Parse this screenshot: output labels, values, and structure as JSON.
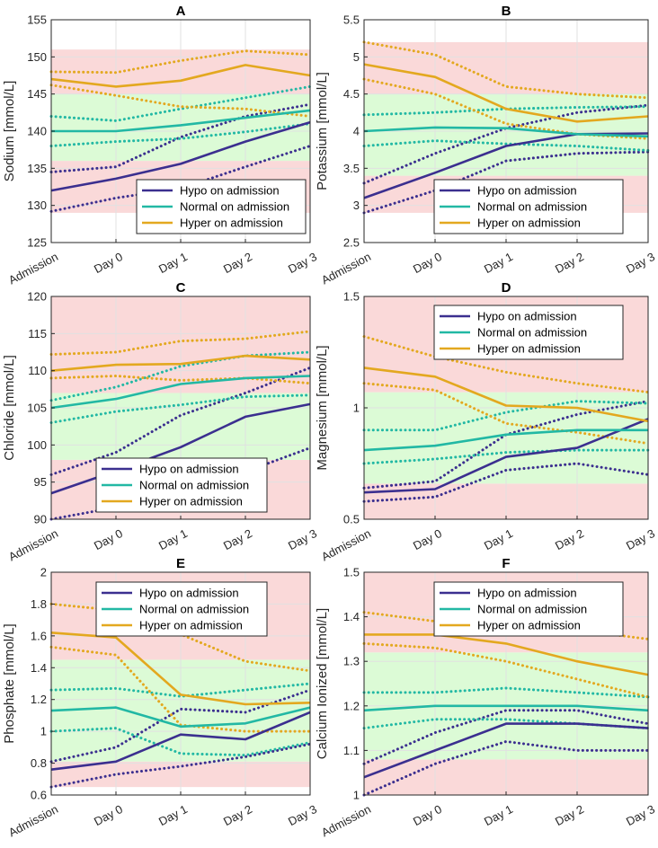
{
  "colors": {
    "hypo": "#3b2f8f",
    "normal": "#22b8a4",
    "hyper": "#e3a81f",
    "band_red": "#fad9d9",
    "band_green": "#dcfbd6",
    "grid": "#e1e1e1",
    "axis": "#262626"
  },
  "legend_labels": [
    "Hypo on admission",
    "Normal on admission",
    "Hyper on admission"
  ],
  "chart_data": [
    {
      "type": "line",
      "panel": "A",
      "title": "A",
      "xlabel": "",
      "ylabel": "Sodium [mmol/L]",
      "categories": [
        "Admission",
        "Day 0",
        "Day 1",
        "Day 2",
        "Day 3"
      ],
      "ylim": [
        125,
        155
      ],
      "yticks": [
        125,
        130,
        135,
        140,
        145,
        150,
        155
      ],
      "ytick_labels": [
        "125",
        "130",
        "135",
        "140",
        "145",
        "150",
        "155"
      ],
      "grid": true,
      "legend_position": "bottom-right",
      "bands": [
        {
          "from": 125,
          "to": 129,
          "color": "white"
        },
        {
          "from": 129,
          "to": 136,
          "color": "red"
        },
        {
          "from": 136,
          "to": 145,
          "color": "green"
        },
        {
          "from": 145,
          "to": 151,
          "color": "red"
        },
        {
          "from": 151,
          "to": 155,
          "color": "white"
        }
      ],
      "series": [
        {
          "name": "Hypo on admission",
          "group": "hypo",
          "style": "solid",
          "values": [
            132,
            133.6,
            135.6,
            138.6,
            141.2
          ]
        },
        {
          "name": "Hypo upper",
          "group": "hypo",
          "style": "dotted",
          "values": [
            134.5,
            135.2,
            139.2,
            142,
            143.6
          ]
        },
        {
          "name": "Hypo lower",
          "group": "hypo",
          "style": "dotted",
          "values": [
            129.2,
            131,
            132.3,
            135.2,
            138
          ]
        },
        {
          "name": "Normal on admission",
          "group": "normal",
          "style": "solid",
          "values": [
            140,
            140,
            140.8,
            141.8,
            142.8
          ]
        },
        {
          "name": "Normal upper",
          "group": "normal",
          "style": "dotted",
          "values": [
            142,
            141.4,
            143,
            144.5,
            146
          ]
        },
        {
          "name": "Normal lower",
          "group": "normal",
          "style": "dotted",
          "values": [
            138,
            138.6,
            139,
            139.9,
            141
          ]
        },
        {
          "name": "Hyper on admission",
          "group": "hyper",
          "style": "solid",
          "values": [
            147,
            146,
            146.8,
            148.9,
            147.5
          ]
        },
        {
          "name": "Hyper upper",
          "group": "hyper",
          "style": "dotted",
          "values": [
            148,
            147.9,
            149.5,
            150.8,
            150.3
          ]
        },
        {
          "name": "Hyper lower",
          "group": "hyper",
          "style": "dotted",
          "values": [
            146.2,
            144.8,
            143.3,
            143,
            142
          ]
        }
      ]
    },
    {
      "type": "line",
      "panel": "B",
      "title": "B",
      "xlabel": "",
      "ylabel": "Potassium [mmol/L]",
      "categories": [
        "Admission",
        "Day 0",
        "Day 1",
        "Day 2",
        "Day 3"
      ],
      "ylim": [
        2.5,
        5.5
      ],
      "yticks": [
        2.5,
        3,
        3.5,
        4,
        4.5,
        5,
        5.5
      ],
      "ytick_labels": [
        "2.5",
        "3",
        "3.5",
        "4",
        "4.5",
        "5",
        "5.5"
      ],
      "grid": true,
      "legend_position": "bottom-right",
      "bands": [
        {
          "from": 2.5,
          "to": 2.9,
          "color": "white"
        },
        {
          "from": 2.9,
          "to": 3.4,
          "color": "red"
        },
        {
          "from": 3.4,
          "to": 4.5,
          "color": "green"
        },
        {
          "from": 4.5,
          "to": 5.2,
          "color": "red"
        },
        {
          "from": 5.2,
          "to": 5.5,
          "color": "white"
        }
      ],
      "series": [
        {
          "name": "Hypo on admission",
          "group": "hypo",
          "style": "solid",
          "values": [
            3.1,
            3.44,
            3.8,
            3.96,
            3.97
          ]
        },
        {
          "name": "Hypo upper",
          "group": "hypo",
          "style": "dotted",
          "values": [
            3.3,
            3.7,
            4.04,
            4.25,
            4.35
          ]
        },
        {
          "name": "Hypo lower",
          "group": "hypo",
          "style": "dotted",
          "values": [
            2.9,
            3.2,
            3.6,
            3.7,
            3.72
          ]
        },
        {
          "name": "Normal on admission",
          "group": "normal",
          "style": "solid",
          "values": [
            4.0,
            4.05,
            4.04,
            3.96,
            3.93
          ]
        },
        {
          "name": "Normal upper",
          "group": "normal",
          "style": "dotted",
          "values": [
            4.22,
            4.25,
            4.3,
            4.32,
            4.33
          ]
        },
        {
          "name": "Normal lower",
          "group": "normal",
          "style": "dotted",
          "values": [
            3.8,
            3.87,
            3.83,
            3.8,
            3.74
          ]
        },
        {
          "name": "Hyper on admission",
          "group": "hyper",
          "style": "solid",
          "values": [
            4.9,
            4.73,
            4.3,
            4.13,
            4.2
          ]
        },
        {
          "name": "Hyper upper",
          "group": "hyper",
          "style": "dotted",
          "values": [
            5.2,
            5.03,
            4.6,
            4.5,
            4.45
          ]
        },
        {
          "name": "Hyper lower",
          "group": "hyper",
          "style": "dotted",
          "values": [
            4.7,
            4.5,
            4.1,
            3.96,
            3.9
          ]
        }
      ]
    },
    {
      "type": "line",
      "panel": "C",
      "title": "C",
      "xlabel": "",
      "ylabel": "Chloride [mmol/L]",
      "categories": [
        "Admission",
        "Day 0",
        "Day 1",
        "Day 2",
        "Day 3"
      ],
      "ylim": [
        90,
        120
      ],
      "yticks": [
        90,
        95,
        100,
        105,
        110,
        115,
        120
      ],
      "ytick_labels": [
        "90",
        "95",
        "100",
        "105",
        "110",
        "115",
        "120"
      ],
      "grid": true,
      "legend_position": "bottom-right",
      "bands": [
        {
          "from": 90,
          "to": 98,
          "color": "red"
        },
        {
          "from": 98,
          "to": 107,
          "color": "green"
        },
        {
          "from": 107,
          "to": 120,
          "color": "red"
        }
      ],
      "series": [
        {
          "name": "Hypo on admission",
          "group": "hypo",
          "style": "solid",
          "values": [
            93.5,
            96.5,
            99.7,
            103.8,
            105.5
          ]
        },
        {
          "name": "Hypo upper",
          "group": "hypo",
          "style": "dotted",
          "values": [
            96,
            99,
            104,
            107,
            110.4
          ]
        },
        {
          "name": "Hypo lower",
          "group": "hypo",
          "style": "dotted",
          "values": [
            90,
            91.6,
            94.3,
            96.4,
            99.6
          ]
        },
        {
          "name": "Normal on admission",
          "group": "normal",
          "style": "solid",
          "values": [
            105,
            106.2,
            108.2,
            109,
            109.3
          ]
        },
        {
          "name": "Normal upper",
          "group": "normal",
          "style": "dotted",
          "values": [
            106,
            107.8,
            110.6,
            112,
            112.5
          ]
        },
        {
          "name": "Normal lower",
          "group": "normal",
          "style": "dotted",
          "values": [
            103,
            104.5,
            105.4,
            106.5,
            106.7
          ]
        },
        {
          "name": "Hyper on admission",
          "group": "hyper",
          "style": "solid",
          "values": [
            110,
            110.8,
            110.9,
            112,
            111.5
          ]
        },
        {
          "name": "Hyper upper",
          "group": "hyper",
          "style": "dotted",
          "values": [
            112.2,
            112.5,
            114,
            114.3,
            115.3
          ]
        },
        {
          "name": "Hyper lower",
          "group": "hyper",
          "style": "dotted",
          "values": [
            109,
            109.3,
            108.7,
            109,
            108.3
          ]
        }
      ]
    },
    {
      "type": "line",
      "panel": "D",
      "title": "D",
      "xlabel": "",
      "ylabel": "Magnesium [mmol/L]",
      "categories": [
        "Admission",
        "Day 0",
        "Day 1",
        "Day 2",
        "Day 3"
      ],
      "ylim": [
        0.5,
        1.5
      ],
      "yticks": [
        0.5,
        1,
        1.5
      ],
      "ytick_labels": [
        "0.5",
        "1",
        "1.5"
      ],
      "grid": true,
      "legend_position": "top-left",
      "bands": [
        {
          "from": 0.5,
          "to": 0.66,
          "color": "red"
        },
        {
          "from": 0.66,
          "to": 1.07,
          "color": "green"
        },
        {
          "from": 1.07,
          "to": 1.5,
          "color": "red"
        }
      ],
      "series": [
        {
          "name": "Hypo on admission",
          "group": "hypo",
          "style": "solid",
          "values": [
            0.62,
            0.635,
            0.78,
            0.82,
            0.95
          ]
        },
        {
          "name": "Hypo upper",
          "group": "hypo",
          "style": "dotted",
          "values": [
            0.64,
            0.67,
            0.88,
            0.97,
            1.03
          ]
        },
        {
          "name": "Hypo lower",
          "group": "hypo",
          "style": "dotted",
          "values": [
            0.58,
            0.6,
            0.72,
            0.75,
            0.7
          ]
        },
        {
          "name": "Normal on admission",
          "group": "normal",
          "style": "solid",
          "values": [
            0.81,
            0.83,
            0.88,
            0.9,
            0.9
          ]
        },
        {
          "name": "Normal upper",
          "group": "normal",
          "style": "dotted",
          "values": [
            0.9,
            0.9,
            0.98,
            1.03,
            1.02
          ]
        },
        {
          "name": "Normal lower",
          "group": "normal",
          "style": "dotted",
          "values": [
            0.75,
            0.77,
            0.8,
            0.81,
            0.81
          ]
        },
        {
          "name": "Hyper on admission",
          "group": "hyper",
          "style": "solid",
          "values": [
            1.18,
            1.14,
            1.01,
            1.0,
            0.94
          ]
        },
        {
          "name": "Hyper upper",
          "group": "hyper",
          "style": "dotted",
          "values": [
            1.32,
            1.23,
            1.16,
            1.11,
            1.07
          ]
        },
        {
          "name": "Hyper lower",
          "group": "hyper",
          "style": "dotted",
          "values": [
            1.11,
            1.08,
            0.93,
            0.89,
            0.84
          ]
        }
      ]
    },
    {
      "type": "line",
      "panel": "E",
      "title": "E",
      "xlabel": "",
      "ylabel": "Phosphate [mmol/L]",
      "categories": [
        "Admission",
        "Day 0",
        "Day 1",
        "Day 2",
        "Day 3"
      ],
      "ylim": [
        0.6,
        2.0
      ],
      "yticks": [
        0.6,
        0.8,
        1,
        1.2,
        1.4,
        1.6,
        1.8,
        2
      ],
      "ytick_labels": [
        "0.6",
        "0.8",
        "1",
        "1.2",
        "1.4",
        "1.6",
        "1.8",
        "2"
      ],
      "grid": true,
      "legend_position": "top-right",
      "bands": [
        {
          "from": 0.6,
          "to": 0.65,
          "color": "white"
        },
        {
          "from": 0.65,
          "to": 0.81,
          "color": "red"
        },
        {
          "from": 0.81,
          "to": 1.45,
          "color": "green"
        },
        {
          "from": 1.45,
          "to": 2.0,
          "color": "red"
        }
      ],
      "series": [
        {
          "name": "Hypo on admission",
          "group": "hypo",
          "style": "solid",
          "values": [
            0.76,
            0.81,
            0.98,
            0.95,
            1.12
          ]
        },
        {
          "name": "Hypo upper",
          "group": "hypo",
          "style": "dotted",
          "values": [
            0.81,
            0.9,
            1.14,
            1.12,
            1.26
          ]
        },
        {
          "name": "Hypo lower",
          "group": "hypo",
          "style": "dotted",
          "values": [
            0.65,
            0.73,
            0.78,
            0.84,
            0.92
          ]
        },
        {
          "name": "Normal on admission",
          "group": "normal",
          "style": "solid",
          "values": [
            1.13,
            1.15,
            1.03,
            1.05,
            1.15
          ]
        },
        {
          "name": "Normal upper",
          "group": "normal",
          "style": "dotted",
          "values": [
            1.26,
            1.27,
            1.22,
            1.26,
            1.3
          ]
        },
        {
          "name": "Normal lower",
          "group": "normal",
          "style": "dotted",
          "values": [
            1.0,
            1.02,
            0.86,
            0.85,
            0.93
          ]
        },
        {
          "name": "Hyper on admission",
          "group": "hyper",
          "style": "solid",
          "values": [
            1.62,
            1.59,
            1.23,
            1.17,
            1.18
          ]
        },
        {
          "name": "Hyper upper",
          "group": "hyper",
          "style": "dotted",
          "values": [
            1.8,
            1.76,
            1.61,
            1.44,
            1.38
          ]
        },
        {
          "name": "Hyper lower",
          "group": "hyper",
          "style": "dotted",
          "values": [
            1.53,
            1.48,
            1.04,
            1.0,
            1.0
          ]
        }
      ]
    },
    {
      "type": "line",
      "panel": "F",
      "title": "F",
      "xlabel": "",
      "ylabel": "Calcium Ionized [mmol/L]",
      "categories": [
        "Admission",
        "Day 0",
        "Day 1",
        "Day 2",
        "Day 3"
      ],
      "ylim": [
        1.0,
        1.5
      ],
      "yticks": [
        1,
        1.1,
        1.2,
        1.3,
        1.4,
        1.5
      ],
      "ytick_labels": [
        "1",
        "1.1",
        "1.2",
        "1.3",
        "1.4",
        "1.5"
      ],
      "grid": true,
      "legend_position": "top-right",
      "bands": [
        {
          "from": 1.0,
          "to": 1.08,
          "color": "red"
        },
        {
          "from": 1.08,
          "to": 1.32,
          "color": "green"
        },
        {
          "from": 1.32,
          "to": 1.5,
          "color": "red"
        }
      ],
      "series": [
        {
          "name": "Hypo on admission",
          "group": "hypo",
          "style": "solid",
          "values": [
            1.04,
            1.1,
            1.16,
            1.16,
            1.15
          ]
        },
        {
          "name": "Hypo upper",
          "group": "hypo",
          "style": "dotted",
          "values": [
            1.07,
            1.14,
            1.19,
            1.19,
            1.16
          ]
        },
        {
          "name": "Hypo lower",
          "group": "hypo",
          "style": "dotted",
          "values": [
            1.0,
            1.07,
            1.12,
            1.1,
            1.1
          ]
        },
        {
          "name": "Normal on admission",
          "group": "normal",
          "style": "solid",
          "values": [
            1.19,
            1.2,
            1.2,
            1.2,
            1.19
          ]
        },
        {
          "name": "Normal upper",
          "group": "normal",
          "style": "dotted",
          "values": [
            1.23,
            1.23,
            1.24,
            1.23,
            1.22
          ]
        },
        {
          "name": "Normal lower",
          "group": "normal",
          "style": "dotted",
          "values": [
            1.15,
            1.17,
            1.17,
            1.16,
            1.15
          ]
        },
        {
          "name": "Hyper on admission",
          "group": "hyper",
          "style": "solid",
          "values": [
            1.36,
            1.36,
            1.34,
            1.3,
            1.27
          ]
        },
        {
          "name": "Hyper upper",
          "group": "hyper",
          "style": "dotted",
          "values": [
            1.41,
            1.39,
            1.38,
            1.37,
            1.35
          ]
        },
        {
          "name": "Hyper lower",
          "group": "hyper",
          "style": "dotted",
          "values": [
            1.34,
            1.33,
            1.3,
            1.26,
            1.22
          ]
        }
      ]
    }
  ]
}
